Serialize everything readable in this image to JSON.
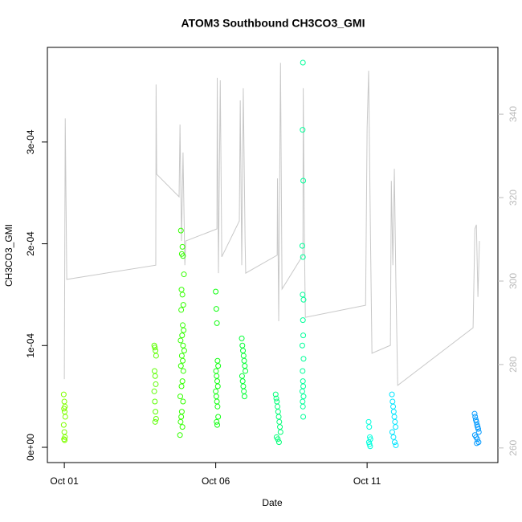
{
  "chart_data": {
    "type": "scatter",
    "title": "ATOM3 Southbound CH3CO3_GMI",
    "x_label": "Date",
    "y_label": "CH3CO3_GMI",
    "xlim": [
      0.44,
      15.32
    ],
    "xticks": [
      {
        "value": 1,
        "label": "Oct 01"
      },
      {
        "value": 6,
        "label": "Oct 06"
      },
      {
        "value": 11,
        "label": "Oct 11"
      }
    ],
    "ylim": [
      -1.5e-05,
      0.000393
    ],
    "yticks": [
      {
        "value": 0,
        "label": "0e+00"
      },
      {
        "value": 0.0001,
        "label": "1e-04"
      },
      {
        "value": 0.0002,
        "label": "2e-04"
      },
      {
        "value": 0.0003,
        "label": "3e-04"
      }
    ],
    "y2lim": [
      256.5,
      356
    ],
    "y2ticks": [
      260,
      280,
      300,
      320,
      340
    ],
    "y2_color": "#bbbbbb",
    "series": [
      {
        "type": "line",
        "axis": "y2",
        "color": "#c8c8c8",
        "x": [
          1.0,
          1.03,
          1.08,
          4.02,
          4.03,
          4.05,
          4.79,
          4.82,
          4.87,
          4.92,
          4.98,
          5.01,
          6.04,
          6.05,
          6.09,
          6.15,
          6.2,
          6.78,
          6.81,
          6.86,
          6.91,
          6.97,
          6.99,
          8.03,
          8.04,
          8.08,
          8.14,
          8.19,
          8.88,
          8.89,
          8.93,
          8.96,
          10.95,
          11.0,
          11.05,
          11.11,
          11.16,
          11.77,
          11.8,
          11.85,
          11.9,
          11.95,
          12.01,
          14.5,
          14.56,
          14.61,
          14.66,
          14.71
        ],
        "values": [
          276.5,
          339.0,
          300.4,
          303.8,
          347.1,
          325.6,
          320.2,
          337.5,
          309.6,
          330.8,
          303.8,
          309.6,
          312.5,
          348.7,
          301.9,
          348.1,
          305.8,
          314.4,
          343.3,
          303.8,
          346.2,
          309.6,
          301.9,
          306.2,
          324.6,
          290.4,
          352.3,
          298.1,
          306.2,
          346.2,
          309.6,
          291.3,
          294.2,
          336.5,
          350.4,
          311.5,
          282.7,
          284.6,
          324.0,
          303.8,
          326.9,
          300.0,
          275.0,
          288.8,
          312.5,
          313.5,
          296.2,
          309.6
        ]
      },
      {
        "color": "#80ff00",
        "x": [
          0.98,
          1.0,
          1.02,
          0.99,
          1.01,
          1.03,
          0.98,
          1.0,
          1.02,
          0.99,
          1.01
        ],
        "values": [
          5.2e-05,
          4.5e-05,
          4e-05,
          3.8e-05,
          3.5e-05,
          3e-05,
          2.2e-05,
          1.5e-05,
          1e-05,
          8e-06,
          7e-06
        ]
      },
      {
        "color": "#5cff00",
        "x": [
          3.97,
          3.99,
          4.01,
          4.03,
          3.98,
          4.0,
          4.02,
          3.97,
          3.99,
          4.01,
          4.03,
          4.0
        ],
        "values": [
          0.0001,
          9.8e-05,
          9.5e-05,
          9e-05,
          7.5e-05,
          7e-05,
          6.2e-05,
          5.5e-05,
          4.5e-05,
          3.5e-05,
          2.8e-05,
          2.5e-05
        ]
      },
      {
        "color": "#33ff00",
        "x": [
          4.85,
          4.9,
          4.88,
          4.92,
          4.95,
          4.87,
          4.9,
          4.93,
          4.86,
          4.91,
          4.94,
          4.89,
          4.84,
          4.92,
          4.96,
          4.88,
          4.91,
          4.85,
          4.93,
          4.9,
          4.87,
          4.83,
          4.92,
          4.88,
          4.86,
          4.84,
          4.9,
          4.82
        ],
        "values": [
          0.000213,
          0.000197,
          0.00019,
          0.000188,
          0.00017,
          0.000155,
          0.00015,
          0.00014,
          0.000135,
          0.00012,
          0.000115,
          0.00011,
          0.000105,
          0.0001,
          9.5e-05,
          9e-05,
          8.5e-05,
          8e-05,
          7.5e-05,
          6.5e-05,
          6e-05,
          5e-05,
          4.5e-05,
          3.5e-05,
          3e-05,
          2.5e-05,
          2e-05,
          1.2e-05
        ]
      },
      {
        "color": "#11ff11",
        "x": [
          6.0,
          6.02,
          6.04,
          6.06,
          6.08,
          6.01,
          6.03,
          6.05,
          6.07,
          6.0,
          6.02,
          6.04,
          6.06,
          6.08,
          6.03,
          6.05
        ],
        "values": [
          0.000153,
          0.000136,
          0.000122,
          8.5e-05,
          8e-05,
          7.5e-05,
          7e-05,
          6.5e-05,
          6e-05,
          5.5e-05,
          5e-05,
          4.5e-05,
          4e-05,
          3e-05,
          2.5e-05,
          2.2e-05
        ]
      },
      {
        "color": "#00ff33",
        "x": [
          6.86,
          6.88,
          6.9,
          6.92,
          6.94,
          6.96,
          6.98,
          6.87,
          6.89,
          6.91,
          6.93,
          6.95
        ],
        "values": [
          0.000107,
          0.0001,
          9.5e-05,
          9e-05,
          8.5e-05,
          8e-05,
          7.5e-05,
          7e-05,
          6.5e-05,
          6e-05,
          5.5e-05,
          5e-05
        ]
      },
      {
        "color": "#00ff77",
        "x": [
          7.98,
          8.0,
          8.02,
          8.04,
          8.06,
          8.08,
          8.1,
          8.12,
          8.14,
          8.01,
          8.05,
          8.09
        ],
        "values": [
          5.2e-05,
          4.8e-05,
          4.5e-05,
          4e-05,
          3.5e-05,
          3e-05,
          2.5e-05,
          2e-05,
          1.5e-05,
          1e-05,
          8e-06,
          5e-06
        ]
      },
      {
        "color": "#00ff99",
        "x": [
          8.88,
          8.87,
          8.89,
          8.86,
          8.88,
          8.87,
          8.9,
          8.88,
          8.89,
          8.86,
          8.9,
          8.87,
          8.88,
          8.89,
          8.86,
          8.9,
          8.87,
          8.88,
          8.89
        ],
        "values": [
          0.000378,
          0.000312,
          0.000262,
          0.000198,
          0.000187,
          0.00015,
          0.000145,
          0.000125,
          0.00011,
          0.0001,
          8.7e-05,
          7.5e-05,
          6.5e-05,
          6e-05,
          5.5e-05,
          5e-05,
          4.5e-05,
          4e-05,
          3e-05
        ]
      },
      {
        "color": "#00ffdd",
        "x": [
          11.05,
          11.07,
          11.09,
          11.11,
          11.06,
          11.08,
          11.1
        ],
        "values": [
          2.5e-05,
          2e-05,
          1e-05,
          8e-06,
          5e-06,
          3e-06,
          1e-06
        ]
      },
      {
        "color": "#00e5ff",
        "x": [
          11.82,
          11.84,
          11.86,
          11.88,
          11.9,
          11.92,
          11.94,
          11.83,
          11.87,
          11.91,
          11.95
        ],
        "values": [
          5.2e-05,
          4.5e-05,
          4e-05,
          3.5e-05,
          3e-05,
          2.5e-05,
          2e-05,
          1.5e-05,
          1e-05,
          5e-06,
          2e-06
        ]
      },
      {
        "color": "#0099ff",
        "x": [
          14.55,
          14.57,
          14.59,
          14.61,
          14.63,
          14.65,
          14.67,
          14.69,
          14.56,
          14.6,
          14.64,
          14.68,
          14.62
        ],
        "values": [
          3.3e-05,
          3e-05,
          2.7e-05,
          2.5e-05,
          2.2e-05,
          2e-05,
          1.8e-05,
          1.5e-05,
          1.2e-05,
          1e-05,
          8e-06,
          5e-06,
          4e-06
        ]
      }
    ]
  }
}
